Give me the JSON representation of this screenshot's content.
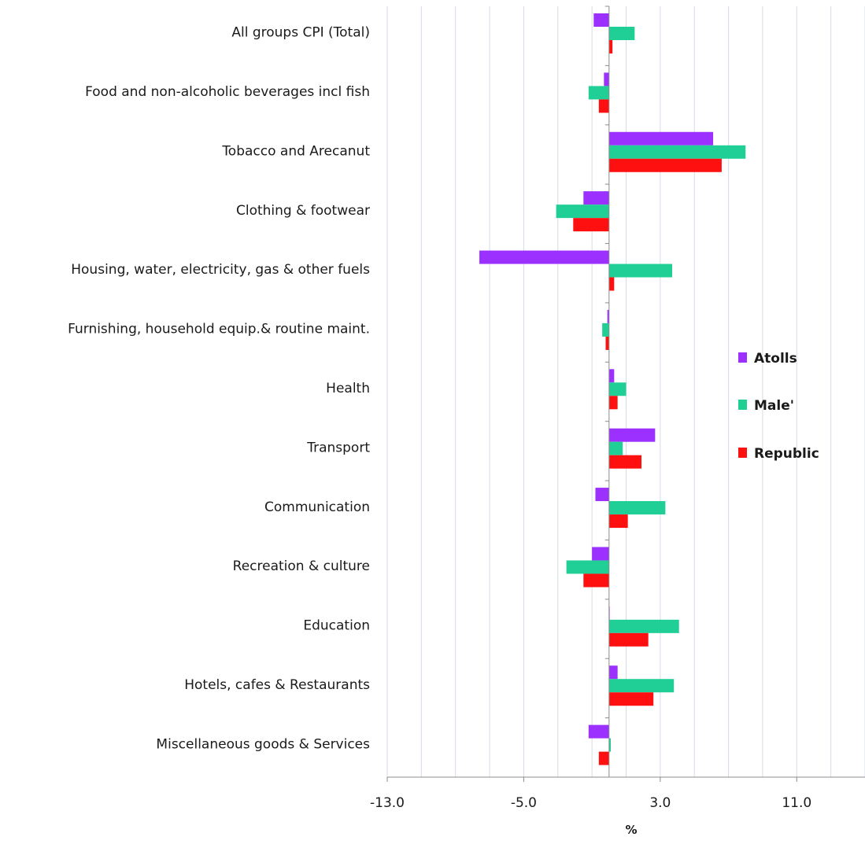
{
  "chart_data": {
    "type": "bar",
    "orientation": "horizontal",
    "categories": [
      "All groups CPI (Total)",
      "Food and non-alcoholic beverages incl fish",
      "Tobacco and Arecanut",
      "Clothing & footwear",
      "Housing, water, electricity, gas & other fuels",
      "Furnishing, household equip.& routine maint.",
      "Health",
      "Transport",
      "Communication",
      "Recreation & culture",
      "Education",
      "Hotels, cafes & Restaurants",
      "Miscellaneous goods & Services"
    ],
    "series": [
      {
        "name": "Atolls",
        "color": "#9b30ff",
        "values": [
          -0.9,
          -0.3,
          6.1,
          -1.5,
          -7.6,
          -0.1,
          0.3,
          2.7,
          -0.8,
          -1.0,
          0.0,
          0.5,
          -1.2
        ]
      },
      {
        "name": "Male'",
        "color": "#1fcf95",
        "values": [
          1.5,
          -1.2,
          8.0,
          -3.1,
          3.7,
          -0.4,
          1.0,
          0.8,
          3.3,
          -2.5,
          4.1,
          3.8,
          0.1
        ]
      },
      {
        "name": "Republic",
        "color": "#ff1010",
        "values": [
          0.2,
          -0.6,
          6.6,
          -2.1,
          0.3,
          -0.2,
          0.5,
          1.9,
          1.1,
          -1.5,
          2.3,
          2.6,
          -0.6
        ]
      }
    ],
    "xlabel": "%",
    "ylabel": "",
    "xlim": [
      -13.0,
      15.0
    ],
    "x_ticks": [
      "-13.0",
      "-5.0",
      "3.0",
      "11.0"
    ],
    "grid": "vertical minor gridlines every 2 units",
    "legend_position": "right"
  }
}
